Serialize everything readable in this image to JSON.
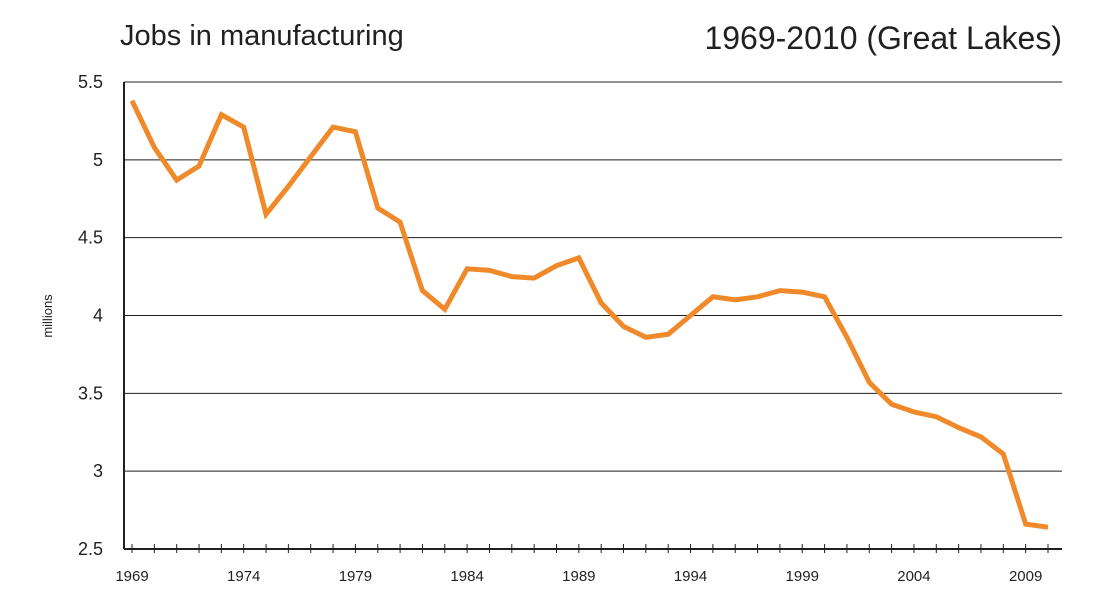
{
  "chart_data": {
    "type": "line",
    "title": "Jobs in manufacturing",
    "subtitle": "1969-2010 (Great Lakes)",
    "xlabel": "",
    "ylabel": "millions",
    "ylim": [
      2.5,
      5.5
    ],
    "xlim": [
      1969,
      2010
    ],
    "grid": true,
    "yticks": [
      "5.5",
      "5",
      "4.5",
      "4",
      "3.5",
      "3",
      "2.5"
    ],
    "ytick_values": [
      5.5,
      5,
      4.5,
      4,
      3.5,
      3,
      2.5
    ],
    "xticks": [
      "1969",
      "1974",
      "1979",
      "1984",
      "1989",
      "1994",
      "1999",
      "2004",
      "2009"
    ],
    "xtick_values": [
      1969,
      1974,
      1979,
      1984,
      1989,
      1994,
      1999,
      2004,
      2009
    ],
    "series": [
      {
        "name": "Jobs in manufacturing",
        "color": "#f0892a",
        "x": [
          1969,
          1970,
          1971,
          1972,
          1973,
          1974,
          1975,
          1976,
          1977,
          1978,
          1979,
          1980,
          1981,
          1982,
          1983,
          1984,
          1985,
          1986,
          1987,
          1988,
          1989,
          1990,
          1991,
          1992,
          1993,
          1994,
          1995,
          1996,
          1997,
          1998,
          1999,
          2000,
          2001,
          2002,
          2003,
          2004,
          2005,
          2006,
          2007,
          2008,
          2009,
          2010
        ],
        "values": [
          5.38,
          5.08,
          4.87,
          4.96,
          5.29,
          5.21,
          4.65,
          4.83,
          5.02,
          5.21,
          5.18,
          4.69,
          4.6,
          4.16,
          4.04,
          4.3,
          4.29,
          4.25,
          4.24,
          4.32,
          4.37,
          4.08,
          3.93,
          3.86,
          3.88,
          4.0,
          4.12,
          4.1,
          4.12,
          4.16,
          4.15,
          4.12,
          3.86,
          3.57,
          3.43,
          3.38,
          3.35,
          3.28,
          3.22,
          3.11,
          2.66,
          2.64
        ]
      }
    ]
  }
}
